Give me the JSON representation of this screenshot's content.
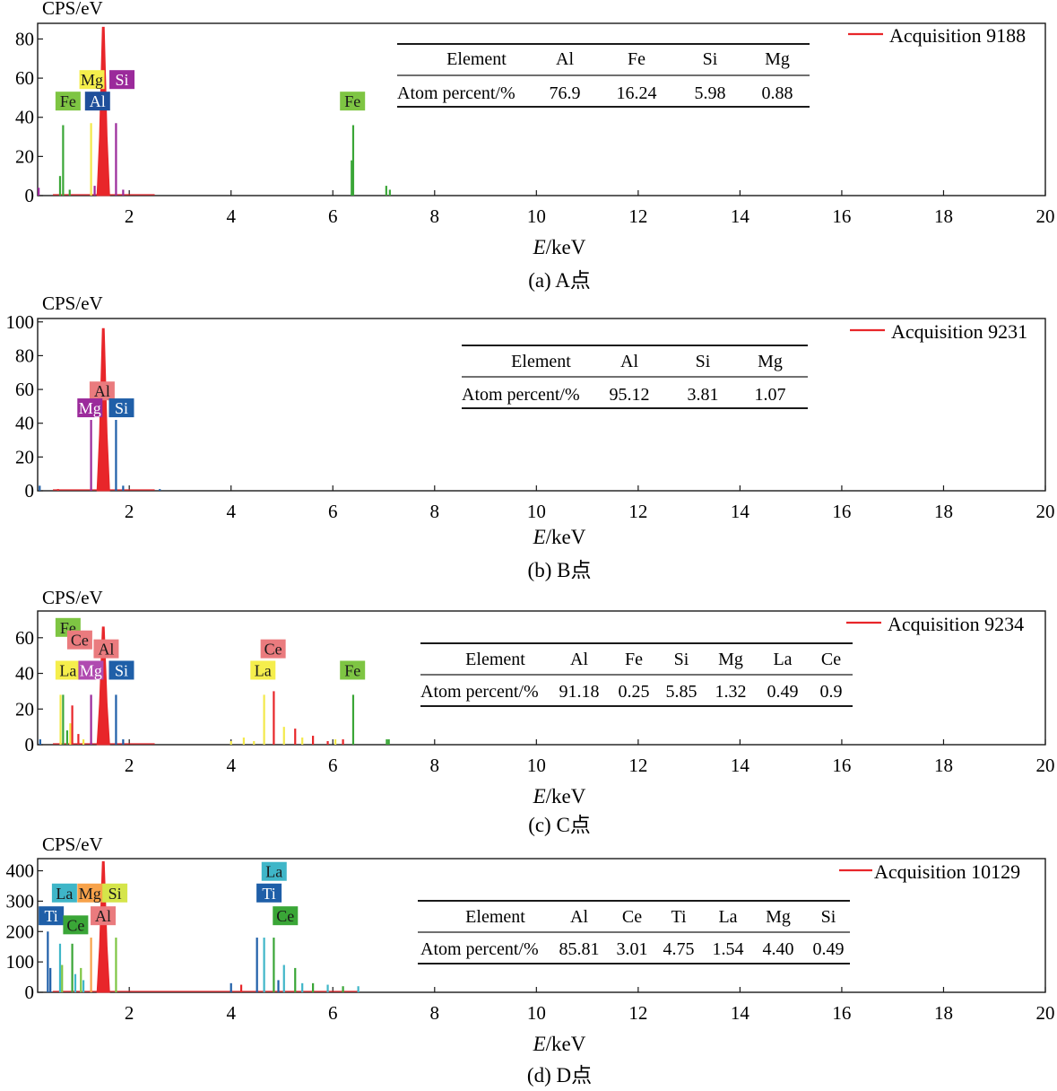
{
  "chart_data": [
    {
      "type": "spectrum",
      "ylabel": "CPS/eV",
      "xlabel_var": "E",
      "xlabel_unit": "/keV",
      "caption": "(a) A点",
      "xlim": [
        0.2,
        20
      ],
      "ylim": [
        0,
        88
      ],
      "xticks": [
        2,
        4,
        6,
        8,
        10,
        12,
        14,
        16,
        18,
        20
      ],
      "yticks": [
        0,
        20,
        40,
        60,
        80
      ],
      "legend": "Acquisition 9188",
      "legend_color": "#e8262a",
      "table": {
        "header": [
          "Element",
          "Al",
          "Fe",
          "Si",
          "Mg"
        ],
        "row_label": "Atom percent/%",
        "values": [
          "76.9",
          "16.24",
          "5.98",
          "0.88"
        ]
      },
      "peaks": [
        {
          "x": 0.22,
          "y": 4,
          "color": "#9b2a9b"
        },
        {
          "x": 0.7,
          "y": 36,
          "color": "#3aa637"
        },
        {
          "x": 0.64,
          "y": 10,
          "color": "#3aa637"
        },
        {
          "x": 0.83,
          "y": 3,
          "color": "#3aa637"
        },
        {
          "x": 1.25,
          "y": 37,
          "color": "#f3e94a"
        },
        {
          "x": 1.32,
          "y": 5,
          "color": "#9b2a9b"
        },
        {
          "x": 1.74,
          "y": 37,
          "color": "#9b2a9b"
        },
        {
          "x": 1.88,
          "y": 3,
          "color": "#9b2a9b"
        },
        {
          "x": 6.4,
          "y": 36,
          "color": "#3aa637"
        },
        {
          "x": 6.37,
          "y": 18,
          "color": "#3aa637"
        },
        {
          "x": 7.05,
          "y": 5,
          "color": "#3aa637"
        },
        {
          "x": 7.12,
          "y": 3,
          "color": "#3aa637"
        }
      ],
      "main_peak": {
        "x": 1.49,
        "y": 86,
        "color": "#e8262a"
      },
      "labels": [
        {
          "text": "Fe",
          "x": 0.55,
          "y": 43,
          "bg": "#7ec543",
          "fg": "#1a1a1a"
        },
        {
          "text": "Mg",
          "x": 1.02,
          "y": 54,
          "bg": "#f5ee4c",
          "fg": "#1a1a1a"
        },
        {
          "text": "Si",
          "x": 1.61,
          "y": 54,
          "bg": "#9b2a9b",
          "fg": "#ffffff"
        },
        {
          "text": "Al",
          "x": 1.13,
          "y": 43,
          "bg": "#1f4f9b",
          "fg": "#ffffff"
        },
        {
          "text": "Fe",
          "x": 6.14,
          "y": 43,
          "bg": "#7ec543",
          "fg": "#1a1a1a"
        }
      ]
    },
    {
      "type": "spectrum",
      "ylabel": "CPS/eV",
      "xlabel_var": "E",
      "xlabel_unit": "/keV",
      "caption": "(b) B点",
      "xlim": [
        0.2,
        20
      ],
      "ylim": [
        0,
        102
      ],
      "xticks": [
        2,
        4,
        6,
        8,
        10,
        12,
        14,
        16,
        18,
        20
      ],
      "yticks": [
        0,
        20,
        40,
        60,
        80,
        100
      ],
      "legend": "Acquisition 9231",
      "legend_color": "#e8262a",
      "table": {
        "header": [
          "Element",
          "Al",
          "Si",
          "Mg"
        ],
        "row_label": "Atom percent/%",
        "values": [
          "95.12",
          "3.81",
          "1.07"
        ]
      },
      "peaks": [
        {
          "x": 0.24,
          "y": 3,
          "color": "#1f5fa8"
        },
        {
          "x": 0.6,
          "y": 1,
          "color": "#e8262a"
        },
        {
          "x": 1.25,
          "y": 42,
          "color": "#9b2a9b"
        },
        {
          "x": 1.74,
          "y": 42,
          "color": "#1f5fa8"
        },
        {
          "x": 1.88,
          "y": 3,
          "color": "#1f5fa8"
        },
        {
          "x": 2.6,
          "y": 1,
          "color": "#1f5fa8"
        }
      ],
      "main_peak": {
        "x": 1.49,
        "y": 96,
        "color": "#e8262a"
      },
      "labels": [
        {
          "text": "Al",
          "x": 1.22,
          "y": 53,
          "bg": "#ea7b7e",
          "fg": "#1a1a1a"
        },
        {
          "text": "Mg",
          "x": 0.98,
          "y": 43,
          "bg": "#9b2a9b",
          "fg": "#ffffff"
        },
        {
          "text": "Si",
          "x": 1.6,
          "y": 43,
          "bg": "#1f5fa8",
          "fg": "#ffffff"
        }
      ]
    },
    {
      "type": "spectrum",
      "ylabel": "CPS/eV",
      "xlabel_var": "E",
      "xlabel_unit": "/keV",
      "caption": "(c) C点",
      "xlim": [
        0.2,
        20
      ],
      "ylim": [
        0,
        75
      ],
      "xticks": [
        2,
        4,
        6,
        8,
        10,
        12,
        14,
        16,
        18,
        20
      ],
      "yticks": [
        0,
        20,
        40,
        60
      ],
      "legend": "Acquisition 9234",
      "legend_color": "#e8262a",
      "table": {
        "header": [
          "Element",
          "Al",
          "Fe",
          "Si",
          "Mg",
          "La",
          "Ce"
        ],
        "row_label": "Atom percent/%",
        "values": [
          "91.18",
          "0.25",
          "5.85",
          "1.32",
          "0.49",
          "0.9"
        ]
      },
      "peaks": [
        {
          "x": 0.25,
          "y": 3,
          "color": "#1f5fa8"
        },
        {
          "x": 0.65,
          "y": 28,
          "color": "#f3e94a"
        },
        {
          "x": 0.7,
          "y": 28,
          "color": "#3aa637"
        },
        {
          "x": 0.78,
          "y": 8,
          "color": "#3aa637"
        },
        {
          "x": 0.88,
          "y": 22,
          "color": "#e8262a"
        },
        {
          "x": 0.84,
          "y": 12,
          "color": "#f3e94a"
        },
        {
          "x": 1.0,
          "y": 6,
          "color": "#e8262a"
        },
        {
          "x": 1.1,
          "y": 3,
          "color": "#f3e94a"
        },
        {
          "x": 1.25,
          "y": 28,
          "color": "#9b2a9b"
        },
        {
          "x": 1.74,
          "y": 28,
          "color": "#1f5fa8"
        },
        {
          "x": 1.88,
          "y": 3,
          "color": "#1f5fa8"
        },
        {
          "x": 4.0,
          "y": 2,
          "color": "#f3e94a"
        },
        {
          "x": 4.25,
          "y": 4,
          "color": "#f3e94a"
        },
        {
          "x": 4.45,
          "y": 2,
          "color": "#f3e94a"
        },
        {
          "x": 4.65,
          "y": 28,
          "color": "#f3e94a"
        },
        {
          "x": 4.84,
          "y": 30,
          "color": "#e8262a"
        },
        {
          "x": 5.04,
          "y": 10,
          "color": "#f3e94a"
        },
        {
          "x": 5.26,
          "y": 9,
          "color": "#e8262a"
        },
        {
          "x": 5.4,
          "y": 4,
          "color": "#f3e94a"
        },
        {
          "x": 5.61,
          "y": 5,
          "color": "#e8262a"
        },
        {
          "x": 5.9,
          "y": 2,
          "color": "#e8262a"
        },
        {
          "x": 6.05,
          "y": 3,
          "color": "#f3e94a"
        },
        {
          "x": 6.2,
          "y": 3,
          "color": "#e8262a"
        },
        {
          "x": 6.4,
          "y": 28,
          "color": "#3aa637"
        },
        {
          "x": 7.06,
          "y": 3,
          "color": "#3aa637"
        },
        {
          "x": 7.1,
          "y": 3,
          "color": "#3aa637"
        }
      ],
      "main_peak": {
        "x": 1.49,
        "y": 66,
        "color": "#e8262a"
      },
      "labels": [
        {
          "text": "Fe",
          "x": 0.55,
          "y": 60,
          "bg": "#7ec543",
          "fg": "#1a1a1a"
        },
        {
          "text": "Ce",
          "x": 0.78,
          "y": 53,
          "bg": "#ea7b7e",
          "fg": "#1a1a1a"
        },
        {
          "text": "Al",
          "x": 1.3,
          "y": 48,
          "bg": "#ea7b7e",
          "fg": "#1a1a1a"
        },
        {
          "text": "La",
          "x": 0.55,
          "y": 36,
          "bg": "#f5ee4c",
          "fg": "#1a1a1a"
        },
        {
          "text": "Mg",
          "x": 1.0,
          "y": 36,
          "bg": "#b04ab0",
          "fg": "#ffffff"
        },
        {
          "text": "Si",
          "x": 1.6,
          "y": 36,
          "bg": "#1f5fa8",
          "fg": "#ffffff"
        },
        {
          "text": "Ce",
          "x": 4.58,
          "y": 48,
          "bg": "#ea7b7e",
          "fg": "#1a1a1a"
        },
        {
          "text": "La",
          "x": 4.38,
          "y": 36,
          "bg": "#f5ee4c",
          "fg": "#1a1a1a"
        },
        {
          "text": "Fe",
          "x": 6.14,
          "y": 36,
          "bg": "#7ec543",
          "fg": "#1a1a1a"
        }
      ]
    },
    {
      "type": "spectrum",
      "ylabel": "CPS/eV",
      "xlabel_var": "E",
      "xlabel_unit": "/keV",
      "caption": "(d) D点",
      "xlim": [
        0.2,
        20
      ],
      "ylim": [
        0,
        440
      ],
      "xticks": [
        2,
        4,
        6,
        8,
        10,
        12,
        14,
        16,
        18,
        20
      ],
      "yticks": [
        0,
        100,
        200,
        300,
        400
      ],
      "legend": "Acquisition 10129",
      "legend_color": "#e8262a",
      "table": {
        "header": [
          "Element",
          "Al",
          "Ce",
          "Ti",
          "La",
          "Mg",
          "Si"
        ],
        "row_label": "Atom percent/%",
        "values": [
          "85.81",
          "3.01",
          "4.75",
          "1.54",
          "4.40",
          "0.49"
        ]
      },
      "peaks": [
        {
          "x": 0.4,
          "y": 200,
          "color": "#1f5fa8"
        },
        {
          "x": 0.45,
          "y": 80,
          "color": "#1f5fa8"
        },
        {
          "x": 0.64,
          "y": 160,
          "color": "#3fb6c8"
        },
        {
          "x": 0.68,
          "y": 90,
          "color": "#7ec543"
        },
        {
          "x": 0.88,
          "y": 160,
          "color": "#3aa637"
        },
        {
          "x": 0.94,
          "y": 60,
          "color": "#3fb6c8"
        },
        {
          "x": 1.05,
          "y": 80,
          "color": "#7ec543"
        },
        {
          "x": 1.1,
          "y": 40,
          "color": "#3fb6c8"
        },
        {
          "x": 1.25,
          "y": 180,
          "color": "#f7a24a"
        },
        {
          "x": 1.74,
          "y": 180,
          "color": "#7ec543"
        },
        {
          "x": 4.51,
          "y": 180,
          "color": "#1f5fa8"
        },
        {
          "x": 4.65,
          "y": 180,
          "color": "#3fb6c8"
        },
        {
          "x": 4.84,
          "y": 180,
          "color": "#3aa637"
        },
        {
          "x": 4.93,
          "y": 40,
          "color": "#1f5fa8"
        },
        {
          "x": 5.04,
          "y": 90,
          "color": "#3fb6c8"
        },
        {
          "x": 5.26,
          "y": 80,
          "color": "#3aa637"
        },
        {
          "x": 5.4,
          "y": 30,
          "color": "#3fb6c8"
        },
        {
          "x": 5.61,
          "y": 30,
          "color": "#3aa637"
        },
        {
          "x": 5.9,
          "y": 25,
          "color": "#3fb6c8"
        },
        {
          "x": 6.2,
          "y": 20,
          "color": "#3aa637"
        },
        {
          "x": 6.5,
          "y": 20,
          "color": "#3fb6c8"
        },
        {
          "x": 4.0,
          "y": 30,
          "color": "#1f5fa8"
        },
        {
          "x": 4.2,
          "y": 25,
          "color": "#e8262a"
        }
      ],
      "main_peak": {
        "x": 1.49,
        "y": 430,
        "color": "#e8262a"
      },
      "labels": [
        {
          "text": "La",
          "x": 0.48,
          "y": 293,
          "bg": "#3fb6c8",
          "fg": "#1a1a1a"
        },
        {
          "text": "Mg",
          "x": 0.98,
          "y": 293,
          "bg": "#f7a24a",
          "fg": "#1a1a1a"
        },
        {
          "text": "Si",
          "x": 1.47,
          "y": 293,
          "bg": "#d5e54a",
          "fg": "#1a1a1a"
        },
        {
          "text": "Ti",
          "x": 0.22,
          "y": 218,
          "bg": "#1f5fa8",
          "fg": "#ffffff"
        },
        {
          "text": "Ce",
          "x": 0.7,
          "y": 188,
          "bg": "#3aa637",
          "fg": "#1a1a1a"
        },
        {
          "text": "Al",
          "x": 1.24,
          "y": 218,
          "bg": "#ea7b7e",
          "fg": "#1a1a1a"
        },
        {
          "text": "La",
          "x": 4.6,
          "y": 364,
          "bg": "#3fb6c8",
          "fg": "#1a1a1a"
        },
        {
          "text": "Ti",
          "x": 4.5,
          "y": 293,
          "bg": "#1f5fa8",
          "fg": "#ffffff"
        },
        {
          "text": "Ce",
          "x": 4.82,
          "y": 218,
          "bg": "#3aa637",
          "fg": "#1a1a1a"
        }
      ]
    }
  ]
}
